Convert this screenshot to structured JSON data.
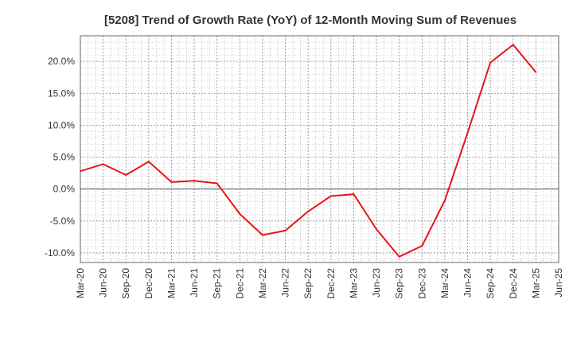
{
  "chart_data": {
    "type": "line",
    "title": "[5208]  Trend of Growth Rate (YoY) of 12-Month Moving Sum of Revenues",
    "xlabel": "",
    "ylabel": "",
    "x_tick_labels": [
      "Mar-20",
      "Jun-20",
      "Sep-20",
      "Dec-20",
      "Mar-21",
      "Jun-21",
      "Sep-21",
      "Dec-21",
      "Mar-22",
      "Jun-22",
      "Sep-22",
      "Dec-22",
      "Mar-23",
      "Jun-23",
      "Sep-23",
      "Dec-23",
      "Mar-24",
      "Jun-24",
      "Sep-24",
      "Dec-24",
      "Mar-25",
      "Jun-25"
    ],
    "y_tick_values": [
      -10,
      -5,
      0,
      5,
      10,
      15,
      20
    ],
    "y_tick_labels": [
      "-10.0%",
      "-5.0%",
      "0.0%",
      "5.0%",
      "10.0%",
      "15.0%",
      "20.0%"
    ],
    "ylim": [
      -11.5,
      24
    ],
    "grid": true,
    "series": [
      {
        "color": "#e8151b",
        "x": [
          "Mar-20",
          "Jun-20",
          "Sep-20",
          "Dec-20",
          "Mar-21",
          "Jun-21",
          "Sep-21",
          "Dec-21",
          "Mar-22",
          "Jun-22",
          "Sep-22",
          "Dec-22",
          "Mar-23",
          "Jun-23",
          "Sep-23",
          "Dec-23",
          "Mar-24",
          "Jun-24",
          "Sep-24",
          "Dec-24",
          "Mar-25"
        ],
        "values": [
          2.8,
          3.9,
          2.2,
          4.3,
          1.1,
          1.3,
          0.9,
          -3.9,
          -7.2,
          -6.5,
          -3.5,
          -1.1,
          -0.8,
          -6.3,
          -10.6,
          -8.9,
          -1.8,
          8.8,
          19.8,
          22.6,
          18.3
        ]
      }
    ]
  }
}
